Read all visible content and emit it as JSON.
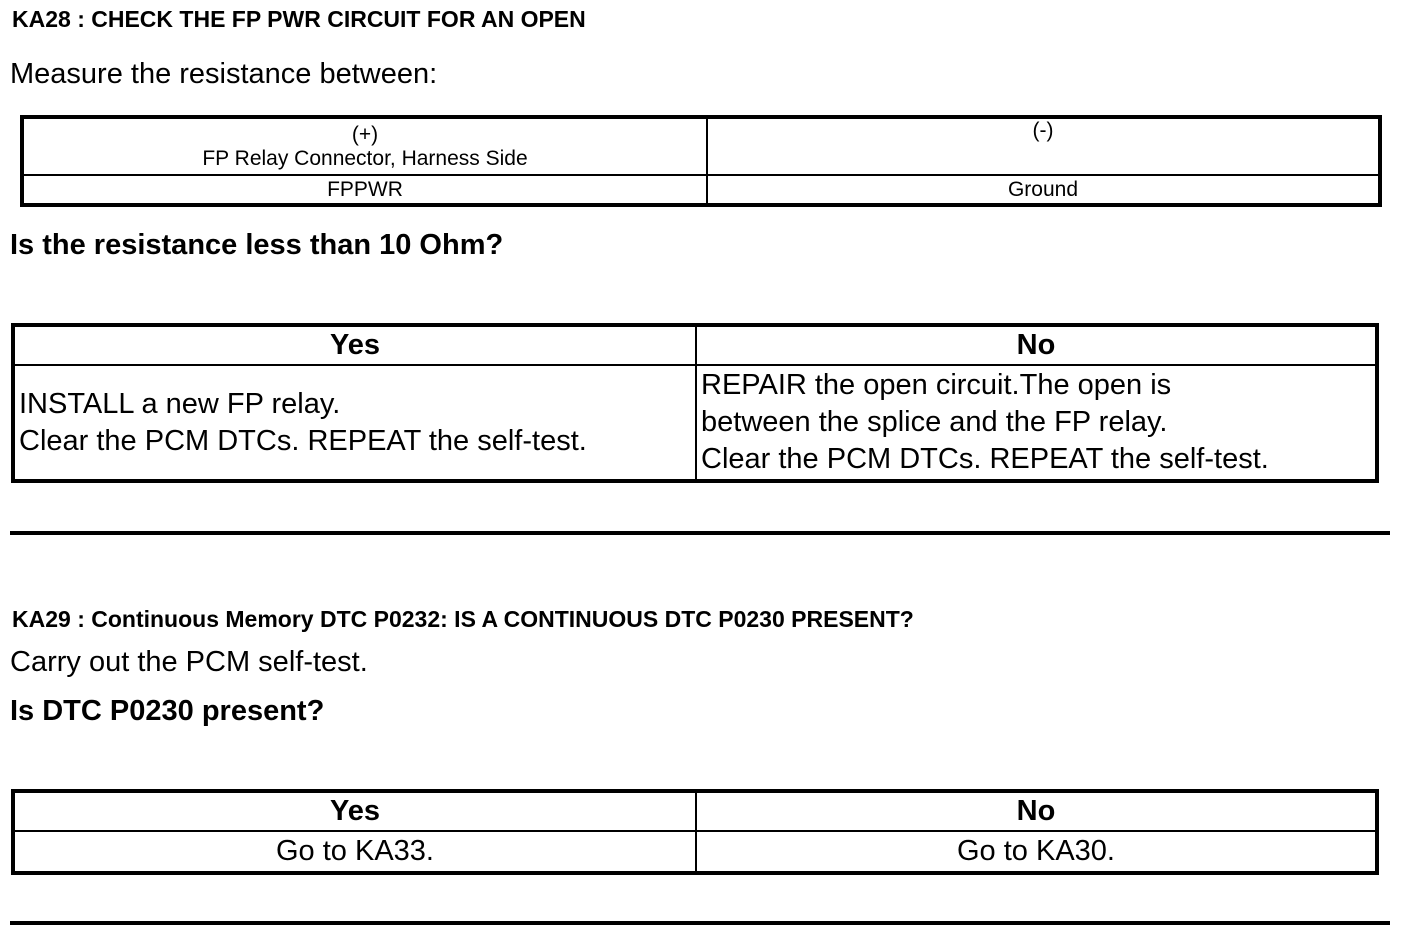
{
  "ka28": {
    "title": "KA28 : CHECK THE FP PWR CIRCUIT FOR AN OPEN",
    "instruction": "Measure the resistance between:",
    "measure_table": {
      "plus_label": "(+)",
      "plus_location": "FP Relay Connector, Harness Side",
      "minus_label": "(-)",
      "plus_pin": "FPPWR",
      "minus_pin": "Ground"
    },
    "question": "Is the resistance less than 10 Ohm?",
    "result_table": {
      "yes_header": "Yes",
      "no_header": "No",
      "yes_lines": [
        "INSTALL a new FP relay.",
        "Clear the PCM DTCs. REPEAT the self-test."
      ],
      "no_lines": [
        "REPAIR the open circuit.The open is",
        "between the splice and the FP relay.",
        "Clear the PCM DTCs. REPEAT the self-test."
      ]
    }
  },
  "ka29": {
    "title": "KA29 : Continuous Memory DTC P0232: IS A CONTINUOUS DTC P0230 PRESENT?",
    "instruction": "Carry out the PCM self-test.",
    "question": "Is DTC P0230 present?",
    "result_table": {
      "yes_header": "Yes",
      "no_header": "No",
      "yes_text": "Go to KA33.",
      "no_text": "Go to KA30."
    }
  }
}
